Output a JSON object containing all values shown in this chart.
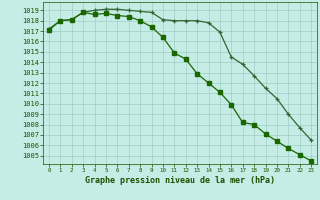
{
  "line1_x": [
    0,
    1,
    2,
    3,
    4,
    5,
    6,
    7,
    8,
    9,
    10,
    11,
    12,
    13,
    14,
    15,
    16,
    17,
    18,
    19,
    20,
    21,
    22,
    23
  ],
  "line1_y": [
    1017.1,
    1018.0,
    1018.1,
    1018.8,
    1018.6,
    1018.7,
    1018.5,
    1018.4,
    1018.0,
    1017.4,
    1016.4,
    1014.9,
    1014.3,
    1012.9,
    1012.0,
    1011.1,
    1009.9,
    1008.2,
    1008.0,
    1007.1,
    1006.4,
    1005.7,
    1005.1,
    1004.5
  ],
  "line2_x": [
    0,
    1,
    2,
    3,
    4,
    5,
    6,
    7,
    8,
    9,
    10,
    11,
    12,
    13,
    14,
    15,
    16,
    17,
    18,
    19,
    20,
    21,
    22,
    23
  ],
  "line2_y": [
    1017.2,
    1018.0,
    1018.1,
    1018.8,
    1019.0,
    1019.1,
    1019.1,
    1019.0,
    1018.9,
    1018.8,
    1018.1,
    1018.0,
    1018.0,
    1018.0,
    1017.8,
    1016.9,
    1014.5,
    1013.8,
    1012.7,
    1011.5,
    1010.5,
    1009.0,
    1007.7,
    1006.5
  ],
  "line1_color": "#1a6600",
  "line2_color": "#336633",
  "marker1": "s",
  "marker2": "+",
  "bg_color": "#c5ede5",
  "grid_color": "#96c8c0",
  "text_color": "#1a5200",
  "axis_color": "#1a5200",
  "xlabel": "Graphe pression niveau de la mer (hPa)",
  "ylim": [
    1004.2,
    1019.8
  ],
  "xlim": [
    -0.5,
    23.5
  ],
  "yticks": [
    1005,
    1006,
    1007,
    1008,
    1009,
    1010,
    1011,
    1012,
    1013,
    1014,
    1015,
    1016,
    1017,
    1018,
    1019
  ],
  "xticks": [
    0,
    1,
    2,
    3,
    4,
    5,
    6,
    7,
    8,
    9,
    10,
    11,
    12,
    13,
    14,
    15,
    16,
    17,
    18,
    19,
    20,
    21,
    22,
    23
  ],
  "ytick_fontsize": 5.0,
  "xtick_fontsize": 4.2,
  "xlabel_fontsize": 6.0
}
